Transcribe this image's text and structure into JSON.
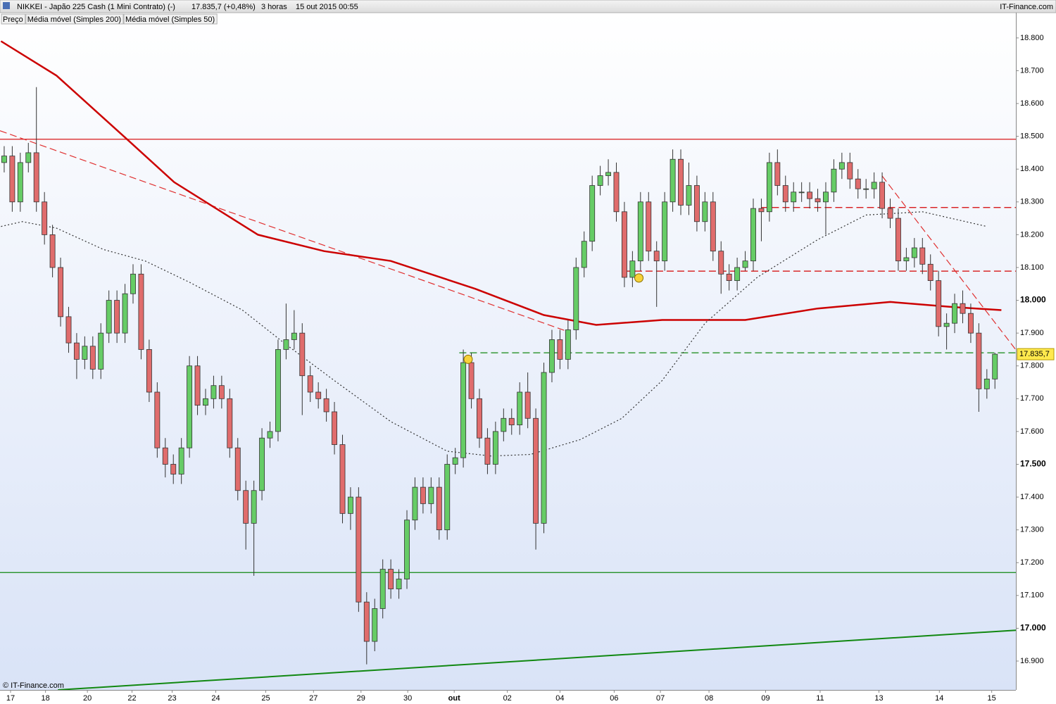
{
  "chart_data": {
    "type": "candlestick",
    "title": "NIKKEI - Japão 225 Cash (1 Mini Contrato) (-)",
    "last_price": "17.835,7 (+0,48%)",
    "interval": "3 horas",
    "datetime": "15 out 2015 00:55",
    "source": "IT-Finance.com",
    "copyright": "© IT-Finance.com",
    "last_label": "17.835,7",
    "xlim": [
      -0.52,
      125.6
    ],
    "ylim": [
      16812,
      18877
    ],
    "xticks": [
      {
        "value": 0.79,
        "label": "17"
      },
      {
        "value": 5.13,
        "label": "18"
      },
      {
        "value": 10.33,
        "label": "20"
      },
      {
        "value": 15.87,
        "label": "22"
      },
      {
        "value": 20.85,
        "label": "23"
      },
      {
        "value": 26.27,
        "label": "24"
      },
      {
        "value": 32.47,
        "label": "25"
      },
      {
        "value": 38.4,
        "label": "27"
      },
      {
        "value": 44.3,
        "label": "29"
      },
      {
        "value": 50.1,
        "label": "30"
      },
      {
        "value": 55.87,
        "label": "out"
      },
      {
        "value": 62.47,
        "label": "02"
      },
      {
        "value": 69,
        "label": "04"
      },
      {
        "value": 75.73,
        "label": "06"
      },
      {
        "value": 81.47,
        "label": "07"
      },
      {
        "value": 87.5,
        "label": "08"
      },
      {
        "value": 94.53,
        "label": "09"
      },
      {
        "value": 101.3,
        "label": "11"
      },
      {
        "value": 108.6,
        "label": "13"
      },
      {
        "value": 116.1,
        "label": "14"
      },
      {
        "value": 122.6,
        "label": "15"
      }
    ],
    "yticks": [
      {
        "value": 16900,
        "label": "16.900"
      },
      {
        "value": 17000,
        "label": "17.000"
      },
      {
        "value": 17100,
        "label": "17.100"
      },
      {
        "value": 17200,
        "label": "17.200"
      },
      {
        "value": 17300,
        "label": "17.300"
      },
      {
        "value": 17400,
        "label": "17.400"
      },
      {
        "value": 17500,
        "label": "17.500"
      },
      {
        "value": 17600,
        "label": "17.600"
      },
      {
        "value": 17700,
        "label": "17.700"
      },
      {
        "value": 17800,
        "label": "17.800"
      },
      {
        "value": 17900,
        "label": "17.900"
      },
      {
        "value": 18000,
        "label": "18.000"
      },
      {
        "value": 18100,
        "label": "18.100"
      },
      {
        "value": 18200,
        "label": "18.200"
      },
      {
        "value": 18300,
        "label": "18.300"
      },
      {
        "value": 18400,
        "label": "18.400"
      },
      {
        "value": 18500,
        "label": "18.500"
      },
      {
        "value": 18600,
        "label": "18.600"
      },
      {
        "value": 18700,
        "label": "18.700"
      },
      {
        "value": 18800,
        "label": "18.800"
      }
    ],
    "bold_yticks": [
      17000,
      17500,
      18000
    ],
    "series": [
      {
        "name": "Preço",
        "up_color": "#66cc66",
        "down_color": "#e06c6c",
        "edge_color": "#333333",
        "open": [
          18420,
          18440,
          18300,
          18420,
          18450,
          18300,
          18200,
          18100,
          17950,
          17870,
          17820,
          17860,
          17790,
          17900,
          18000,
          17900,
          18020,
          18080,
          17850,
          17720,
          17550,
          17500,
          17470,
          17550,
          17800,
          17680,
          17700,
          17740,
          17700,
          17550,
          17420,
          17320,
          17420,
          17580,
          17600,
          17850,
          17880,
          17900,
          17770,
          17720,
          17700,
          17660,
          17560,
          17350,
          17400,
          17080,
          16960,
          17060,
          17180,
          17120,
          17150,
          17330,
          17430,
          17380,
          17430,
          17300,
          17500,
          17520,
          17810,
          17700,
          17580,
          17500,
          17600,
          17640,
          17620,
          17720,
          17640,
          17320,
          17780,
          17880,
          17820,
          17910,
          18100,
          18180,
          18350,
          18380,
          18390,
          18270,
          18070,
          18120,
          18300,
          18150,
          18120,
          18300,
          18430,
          18290,
          18350,
          18240,
          18300,
          18150,
          18080,
          18060,
          18100,
          18120,
          18280,
          18270,
          18420,
          18350,
          18300,
          18330,
          18330,
          18310,
          18300,
          18330,
          18400,
          18420,
          18370,
          18340,
          18340,
          18360,
          18280,
          18250,
          18120,
          18130,
          18160,
          18110,
          18060,
          17920,
          17930,
          17990,
          17960,
          17900,
          17730,
          17760
        ],
        "high": [
          18470,
          18470,
          18450,
          18480,
          18650,
          18330,
          18230,
          18130,
          17980,
          17900,
          17890,
          17890,
          17930,
          18030,
          18030,
          18050,
          18110,
          18110,
          17880,
          17750,
          17580,
          17530,
          17580,
          17830,
          17830,
          17730,
          17770,
          17770,
          17730,
          17580,
          17450,
          17450,
          17610,
          17630,
          17880,
          17990,
          17970,
          17930,
          17800,
          17750,
          17730,
          17690,
          17590,
          17430,
          17430,
          17110,
          17090,
          17210,
          17210,
          17180,
          17360,
          17460,
          17460,
          17460,
          17460,
          17530,
          17550,
          17850,
          17840,
          17730,
          17610,
          17630,
          17670,
          17670,
          17750,
          17780,
          17670,
          17810,
          17910,
          17910,
          17940,
          18130,
          18210,
          18380,
          18410,
          18430,
          18420,
          18300,
          18150,
          18330,
          18330,
          18180,
          18330,
          18460,
          18460,
          18420,
          18380,
          18330,
          18330,
          18180,
          18110,
          18130,
          18150,
          18310,
          18310,
          18450,
          18460,
          18380,
          18360,
          18360,
          18360,
          18340,
          18360,
          18430,
          18450,
          18450,
          18400,
          18370,
          18390,
          18390,
          18310,
          18280,
          18160,
          18190,
          18190,
          18140,
          18090,
          17960,
          18020,
          18030,
          17990,
          17930,
          17790,
          17840
        ],
        "low": [
          18390,
          18270,
          18270,
          18390,
          18270,
          18170,
          18070,
          17920,
          17840,
          17760,
          17790,
          17760,
          17760,
          17870,
          17870,
          17870,
          17990,
          17820,
          17690,
          17520,
          17460,
          17440,
          17440,
          17520,
          17650,
          17650,
          17670,
          17670,
          17520,
          17390,
          17240,
          17160,
          17390,
          17550,
          17570,
          17820,
          17850,
          17650,
          17690,
          17670,
          17630,
          17530,
          17320,
          17300,
          17050,
          16890,
          16930,
          17030,
          17090,
          17090,
          17120,
          17300,
          17350,
          17350,
          17270,
          17270,
          17470,
          17490,
          17670,
          17550,
          17470,
          17470,
          17570,
          17590,
          17590,
          17610,
          17240,
          17290,
          17750,
          17790,
          17790,
          17880,
          18070,
          18150,
          18320,
          18350,
          18240,
          18040,
          18040,
          18090,
          18120,
          17980,
          18090,
          18270,
          18260,
          18260,
          18210,
          18210,
          18120,
          18020,
          18030,
          18030,
          18090,
          18090,
          18180,
          18240,
          18320,
          18270,
          18270,
          18300,
          18280,
          18270,
          18200,
          18300,
          18370,
          18340,
          18310,
          18310,
          18310,
          18250,
          18220,
          18090,
          18090,
          18100,
          18080,
          18030,
          17890,
          17850,
          17900,
          17930,
          17870,
          17660,
          17700,
          17730
        ],
        "close": [
          18440,
          18300,
          18420,
          18450,
          18300,
          18200,
          18100,
          17950,
          17870,
          17820,
          17860,
          17790,
          17900,
          18000,
          17900,
          18020,
          18080,
          17850,
          17720,
          17550,
          17500,
          17470,
          17550,
          17800,
          17680,
          17700,
          17740,
          17700,
          17550,
          17420,
          17320,
          17420,
          17580,
          17600,
          17850,
          17880,
          17900,
          17770,
          17720,
          17700,
          17660,
          17560,
          17350,
          17400,
          17080,
          16960,
          17060,
          17180,
          17120,
          17150,
          17330,
          17430,
          17380,
          17430,
          17300,
          17500,
          17520,
          17810,
          17700,
          17580,
          17500,
          17600,
          17640,
          17620,
          17720,
          17640,
          17320,
          17780,
          17880,
          17820,
          17910,
          18100,
          18180,
          18350,
          18380,
          18390,
          18270,
          18070,
          18120,
          18300,
          18150,
          18120,
          18300,
          18430,
          18290,
          18350,
          18240,
          18300,
          18150,
          18080,
          18060,
          18100,
          18120,
          18280,
          18270,
          18420,
          18350,
          18300,
          18330,
          18330,
          18310,
          18300,
          18330,
          18400,
          18420,
          18370,
          18340,
          18340,
          18360,
          18280,
          18250,
          18120,
          18130,
          18160,
          18110,
          18060,
          17920,
          17930,
          17990,
          17960,
          17900,
          17730,
          17760,
          17835.7
        ]
      },
      {
        "name": "Média móvel (Simples 200)",
        "color": "#cc0000",
        "style": "solid",
        "x": [
          -0.4,
          6.5,
          15.3,
          21.1,
          31.5,
          39.7,
          48,
          58.5,
          67,
          73.5,
          81.7,
          92,
          101,
          110,
          117.5,
          123.8
        ],
        "values": [
          18790,
          18685,
          18490,
          18360,
          18200,
          18150,
          18120,
          18035,
          17955,
          17925,
          17940,
          17940,
          17975,
          17995,
          17980,
          17970
        ]
      },
      {
        "name": "Média móvel (Simples 50)",
        "color": "#333333",
        "style": "dotted",
        "x": [
          -0.4,
          2.25,
          6.5,
          12.33,
          17.5,
          23,
          29.58,
          35,
          41,
          48,
          55,
          60.5,
          65.33,
          71.5,
          76.67,
          81.67,
          87,
          93.5,
          101,
          107,
          114,
          122
        ],
        "values": [
          18225,
          18240,
          18220,
          18155,
          18120,
          18055,
          17970,
          17865,
          17755,
          17630,
          17540,
          17525,
          17530,
          17575,
          17640,
          17755,
          17930,
          18070,
          18185,
          18260,
          18270,
          18225
        ]
      }
    ],
    "hlines": [
      {
        "value": 18491,
        "from": -0.52,
        "color": "#d40000",
        "style": "solid"
      },
      {
        "value": 17170,
        "from": -0.52,
        "color": "#118811",
        "style": "solid"
      },
      {
        "value": 18283,
        "from": 94,
        "color": "#d40000",
        "style": "dashed"
      },
      {
        "value": 18089,
        "from": 77,
        "color": "#d40000",
        "style": "dashed"
      },
      {
        "value": 17840,
        "from": 56.5,
        "color": "#118811",
        "style": "dashed"
      }
    ],
    "trendlines": [
      {
        "x": [
          -0.52,
          69.7
        ],
        "values": [
          18517,
          17907
        ],
        "color": "#e03030",
        "style": "dashed"
      },
      {
        "x": [
          109,
          125.6
        ],
        "values": [
          18379,
          17849
        ],
        "color": "#e03030",
        "style": "dashed"
      },
      {
        "x": [
          6.67,
          125.6
        ],
        "values": [
          16812,
          16994
        ],
        "color": "#118811",
        "style": "solid"
      }
    ],
    "alerts": {
      "x": [
        57.6,
        78.8
      ],
      "values": [
        17820,
        18068
      ]
    }
  }
}
